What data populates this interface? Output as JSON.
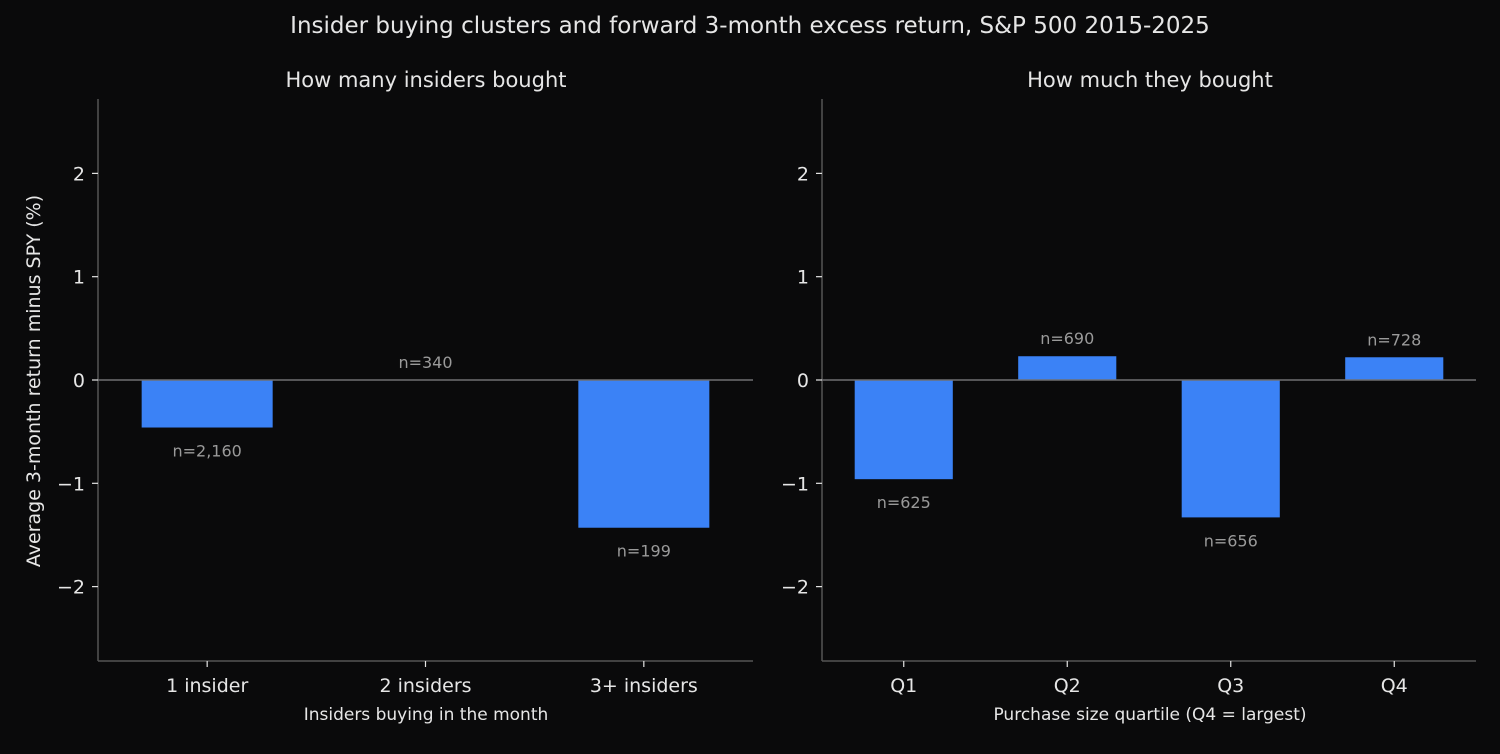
{
  "figure": {
    "title": "Insider buying clusters and forward 3-month excess return, S&P 500 2015-2025",
    "background": "#0a0a0b",
    "text_color": "#e6e6e6",
    "muted_text_color": "#9a9a9a",
    "axis_color": "#555555",
    "bar_color": "#3b82f6"
  },
  "chart_data": [
    {
      "type": "bar",
      "title": "How many insiders bought",
      "xlabel": "Insiders buying in the month",
      "ylabel": "Average 3-month return minus SPY (%)",
      "categories": [
        "1 insider",
        "2 insiders",
        "3+ insiders"
      ],
      "values": [
        -0.46,
        0.0,
        -1.43
      ],
      "annotations": [
        "n=2,160",
        "n=340",
        "n=199"
      ],
      "ylim": [
        -2.72,
        2.72
      ],
      "yticks": [
        -2,
        -1,
        0,
        1,
        2
      ],
      "ytick_labels": [
        "−2",
        "−1",
        "0",
        "1",
        "2"
      ],
      "grid": false,
      "zero_line": true
    },
    {
      "type": "bar",
      "title": "How much they bought",
      "xlabel": "Purchase size quartile (Q4 = largest)",
      "ylabel": "",
      "categories": [
        "Q1",
        "Q2",
        "Q3",
        "Q4"
      ],
      "values": [
        -0.96,
        0.23,
        -1.33,
        0.22
      ],
      "annotations": [
        "n=625",
        "n=690",
        "n=656",
        "n=728"
      ],
      "ylim": [
        -2.72,
        2.72
      ],
      "yticks": [
        -2,
        -1,
        0,
        1,
        2
      ],
      "ytick_labels": [
        "−2",
        "−1",
        "0",
        "1",
        "2"
      ],
      "grid": false,
      "zero_line": true
    }
  ]
}
